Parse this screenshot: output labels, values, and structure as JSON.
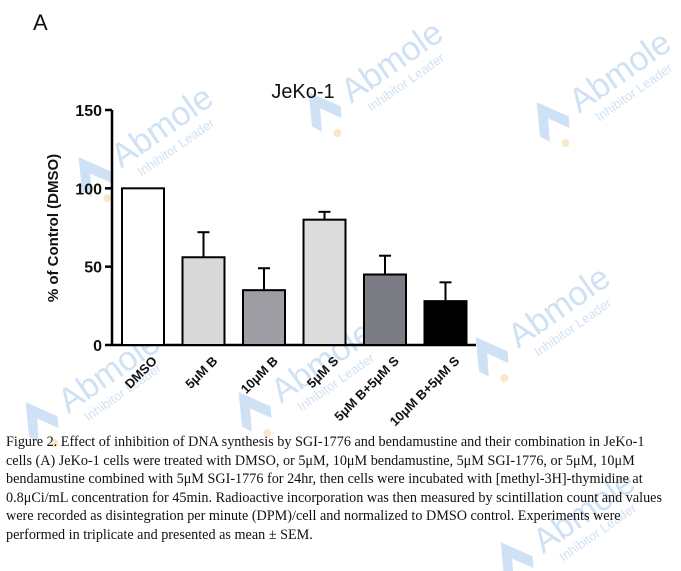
{
  "panel_label": "A",
  "caption": "Figure 2. Effect of inhibition of DNA synthesis by SGI-1776 and bendamustine and their combination in JeKo-1 cells (A) JeKo-1 cells were treated with DMSO, or 5μM, 10μM bendamustine, 5μM SGI-1776, or 5μM, 10μM bendamustine combined with 5μM SGI-1776 for 24hr, then cells were incubated with [methyl-3H]-thymidine at 0.8μCi/mL concentration for 45min. Radioactive incorporation was then measured by scintillation count and values were recorded as disintegration per minute (DPM)/cell and normalized to DMSO control. Experiments were performed in triplicate and presented as mean ± SEM.",
  "watermark": {
    "brand": "Abmole",
    "tagline": "Inhibitor Leader",
    "color": "#a9c9ec"
  },
  "chart_data": {
    "type": "bar",
    "title": "JeKo-1",
    "ylabel": "% of Control (DMSO)",
    "xlabel": "",
    "ylim": [
      0,
      150
    ],
    "yticks": [
      0,
      50,
      100,
      150
    ],
    "categories": [
      "DMSO",
      "5μM B",
      "10μM B",
      "5μM S",
      "5μM B+5μM S",
      "10μM B+5μM S"
    ],
    "values": [
      100,
      56,
      35,
      80,
      45,
      28
    ],
    "errors": [
      0,
      16,
      14,
      5,
      12,
      12
    ],
    "colors": [
      "#ffffff",
      "#d9d9d9",
      "#9d9da3",
      "#dcdcdc",
      "#7c7c84",
      "#000000"
    ],
    "grid": false,
    "legend": "none"
  }
}
